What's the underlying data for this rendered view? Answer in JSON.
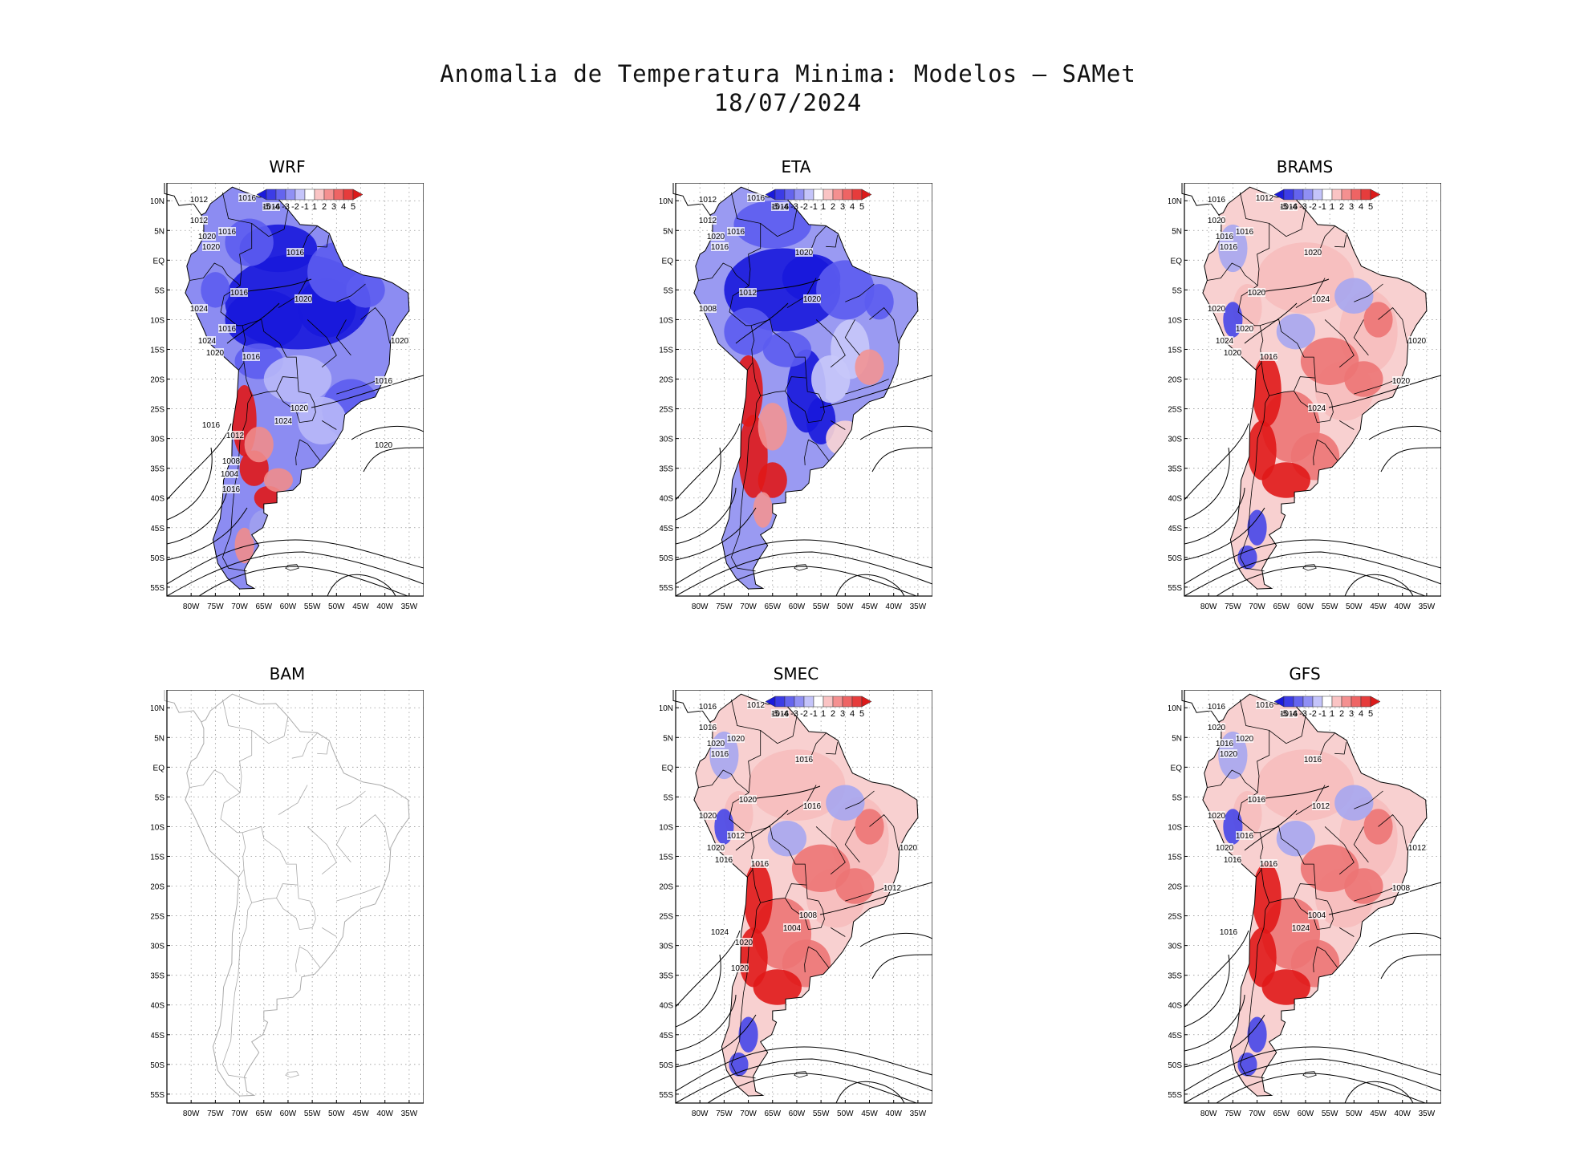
{
  "title": {
    "line1": "Anomalia de Temperatura Minima: Modelos — SAMet",
    "line2": "18/07/2024"
  },
  "colors": {
    "cold": "#0000e0",
    "warm": "#e00000",
    "neutral": "#ffffff",
    "contour": "#000000",
    "coast_inactive": "#aaaaaa"
  },
  "chart_data": [
    {
      "type": "heatmap",
      "title": "WRF",
      "has_data": true,
      "anomaly": "cold",
      "isobars": [
        "1012",
        "1016",
        "1016",
        "1012",
        "1016",
        "1020",
        "1020",
        "1016",
        "1016",
        "1024",
        "1020",
        "1016",
        "1024",
        "1020",
        "1016",
        "1020",
        "1016",
        "1020",
        "1024",
        "1016",
        "1012",
        "1008",
        "1004",
        "1016",
        "1020"
      ],
      "colorbar": {
        "ticks": [
          "-5",
          "-4",
          "-3",
          "-2",
          "-1",
          "1",
          "2",
          "3",
          "4",
          "5"
        ],
        "colors": [
          "#1a1adc",
          "#3c3ce6",
          "#6464ee",
          "#9090f4",
          "#c4c4fa",
          "#ffffff",
          "#fac4c4",
          "#f49090",
          "#ee6464",
          "#e63c3c",
          "#dc1a1a"
        ]
      },
      "xticks": [
        "80W",
        "75W",
        "70W",
        "65W",
        "60W",
        "55W",
        "50W",
        "45W",
        "40W",
        "35W"
      ],
      "yticks": [
        "10N",
        "5N",
        "EQ",
        "5S",
        "10S",
        "15S",
        "20S",
        "25S",
        "30S",
        "35S",
        "40S",
        "45S",
        "50S",
        "55S"
      ]
    },
    {
      "type": "heatmap",
      "title": "ETA",
      "has_data": true,
      "anomaly": "mixed",
      "isobars": [
        "1012",
        "1016",
        "1016",
        "1012",
        "1016",
        "1020",
        "1016",
        "1020",
        "1012",
        "1008",
        "1020"
      ],
      "colorbar": {
        "ticks": [
          "-5",
          "-4",
          "-3",
          "-2",
          "-1",
          "1",
          "2",
          "3",
          "4",
          "5"
        ],
        "colors": [
          "#1a1adc",
          "#3c3ce6",
          "#6464ee",
          "#9090f4",
          "#c4c4fa",
          "#ffffff",
          "#fac4c4",
          "#f49090",
          "#ee6464",
          "#e63c3c",
          "#dc1a1a"
        ]
      },
      "xticks": [
        "80W",
        "75W",
        "70W",
        "65W",
        "60W",
        "55W",
        "50W",
        "45W",
        "40W",
        "35W"
      ],
      "yticks": [
        "10N",
        "5N",
        "EQ",
        "5S",
        "10S",
        "15S",
        "20S",
        "25S",
        "30S",
        "35S",
        "40S",
        "45S",
        "50S",
        "55S"
      ]
    },
    {
      "type": "heatmap",
      "title": "BRAMS",
      "has_data": true,
      "anomaly": "warm",
      "isobars": [
        "1016",
        "1012",
        "1016",
        "1020",
        "1016",
        "1016",
        "1016",
        "1020",
        "1020",
        "1020",
        "1024",
        "1020",
        "1024",
        "1020",
        "1016",
        "1020",
        "1020",
        "1024"
      ],
      "colorbar": {
        "ticks": [
          "-5",
          "-4",
          "-3",
          "-2",
          "-1",
          "1",
          "2",
          "3",
          "4",
          "5"
        ],
        "colors": [
          "#1a1adc",
          "#3c3ce6",
          "#6464ee",
          "#9090f4",
          "#c4c4fa",
          "#ffffff",
          "#fac4c4",
          "#f49090",
          "#ee6464",
          "#e63c3c",
          "#dc1a1a"
        ]
      },
      "xticks": [
        "80W",
        "75W",
        "70W",
        "65W",
        "60W",
        "55W",
        "50W",
        "45W",
        "40W",
        "35W"
      ],
      "yticks": [
        "10N",
        "5N",
        "EQ",
        "5S",
        "10S",
        "15S",
        "20S",
        "25S",
        "30S",
        "35S",
        "40S",
        "45S",
        "50S",
        "55S"
      ]
    },
    {
      "type": "heatmap",
      "title": "BAM",
      "has_data": false,
      "anomaly": "none",
      "isobars": [],
      "colorbar": null,
      "xticks": [
        "80W",
        "75W",
        "70W",
        "65W",
        "60W",
        "55W",
        "50W",
        "45W",
        "40W",
        "35W"
      ],
      "yticks": [
        "10N",
        "5N",
        "EQ",
        "5S",
        "10S",
        "15S",
        "20S",
        "25S",
        "30S",
        "35S",
        "40S",
        "45S",
        "50S",
        "55S"
      ]
    },
    {
      "type": "heatmap",
      "title": "SMEC",
      "has_data": true,
      "anomaly": "warm",
      "isobars": [
        "1016",
        "1012",
        "1016",
        "1016",
        "1020",
        "1020",
        "1016",
        "1016",
        "1020",
        "1020",
        "1016",
        "1012",
        "1020",
        "1016",
        "1016",
        "1020",
        "1012",
        "1008",
        "1004",
        "1024",
        "1020",
        "1020"
      ],
      "colorbar": {
        "ticks": [
          "-5",
          "-4",
          "-3",
          "-2",
          "-1",
          "1",
          "2",
          "3",
          "4",
          "5"
        ],
        "colors": [
          "#1a1adc",
          "#3c3ce6",
          "#6464ee",
          "#9090f4",
          "#c4c4fa",
          "#ffffff",
          "#fac4c4",
          "#f49090",
          "#ee6464",
          "#e63c3c",
          "#dc1a1a"
        ]
      },
      "xticks": [
        "80W",
        "75W",
        "70W",
        "65W",
        "60W",
        "55W",
        "50W",
        "45W",
        "40W",
        "35W"
      ],
      "yticks": [
        "10N",
        "5N",
        "EQ",
        "5S",
        "10S",
        "15S",
        "20S",
        "25S",
        "30S",
        "35S",
        "40S",
        "45S",
        "50S",
        "55S"
      ]
    },
    {
      "type": "heatmap",
      "title": "GFS",
      "has_data": true,
      "anomaly": "warm",
      "isobars": [
        "1016",
        "1016",
        "1016",
        "1020",
        "1020",
        "1016",
        "1020",
        "1016",
        "1016",
        "1020",
        "1012",
        "1016",
        "1020",
        "1016",
        "1016",
        "1012",
        "1008",
        "1004",
        "1024",
        "1016"
      ],
      "colorbar": {
        "ticks": [
          "-5",
          "-4",
          "-3",
          "-2",
          "-1",
          "1",
          "2",
          "3",
          "4",
          "5"
        ],
        "colors": [
          "#1a1adc",
          "#3c3ce6",
          "#6464ee",
          "#9090f4",
          "#c4c4fa",
          "#ffffff",
          "#fac4c4",
          "#f49090",
          "#ee6464",
          "#e63c3c",
          "#dc1a1a"
        ]
      },
      "xticks": [
        "80W",
        "75W",
        "70W",
        "65W",
        "60W",
        "55W",
        "50W",
        "45W",
        "40W",
        "35W"
      ],
      "yticks": [
        "10N",
        "5N",
        "EQ",
        "5S",
        "10S",
        "15S",
        "20S",
        "25S",
        "30S",
        "35S",
        "40S",
        "45S",
        "50S",
        "55S"
      ]
    }
  ]
}
